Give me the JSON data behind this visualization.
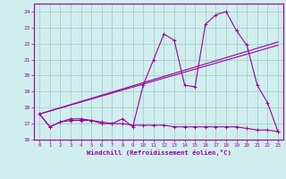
{
  "xlabel": "Windchill (Refroidissement éolien,°C)",
  "bg_color": "#d0eeee",
  "grid_color": "#aacccc",
  "line_color": "#990099",
  "xlim": [
    -0.5,
    23.5
  ],
  "ylim": [
    16,
    24.5
  ],
  "yticks": [
    16,
    17,
    18,
    19,
    20,
    21,
    22,
    23,
    24
  ],
  "xticks": [
    0,
    1,
    2,
    3,
    4,
    5,
    6,
    7,
    8,
    9,
    10,
    11,
    12,
    13,
    14,
    15,
    16,
    17,
    18,
    19,
    20,
    21,
    22,
    23
  ],
  "line1_x": [
    0,
    1,
    2,
    3,
    4,
    5,
    6,
    7,
    8,
    9,
    10,
    11,
    12,
    13,
    14,
    15,
    16,
    17,
    18,
    19,
    20,
    21,
    22,
    23
  ],
  "line1_y": [
    17.6,
    16.8,
    17.1,
    17.2,
    17.2,
    17.2,
    17.0,
    17.0,
    17.3,
    16.8,
    19.4,
    21.0,
    22.6,
    22.2,
    19.4,
    19.3,
    23.2,
    23.8,
    24.0,
    22.8,
    21.9,
    19.4,
    18.3,
    16.5
  ],
  "line2_x": [
    0,
    1,
    2,
    3,
    4,
    5,
    6,
    7,
    8,
    9,
    10,
    11,
    12,
    13,
    14,
    15,
    16,
    17,
    18,
    19,
    20,
    21,
    22,
    23
  ],
  "line2_y": [
    17.6,
    16.8,
    17.1,
    17.3,
    17.3,
    17.2,
    17.1,
    17.0,
    17.0,
    16.9,
    16.9,
    16.9,
    16.9,
    16.8,
    16.8,
    16.8,
    16.8,
    16.8,
    16.8,
    16.8,
    16.7,
    16.6,
    16.6,
    16.5
  ],
  "line3_x": [
    0,
    23
  ],
  "line3_y": [
    17.6,
    21.9
  ],
  "line4_x": [
    0,
    23
  ],
  "line4_y": [
    17.6,
    22.1
  ]
}
